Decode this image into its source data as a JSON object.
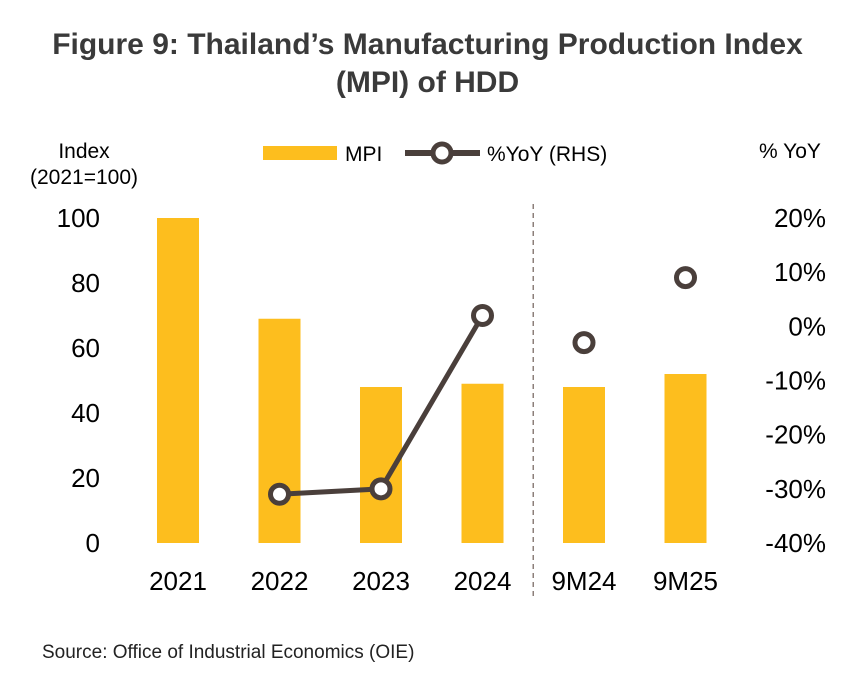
{
  "title_line1": "Figure 9: Thailand’s Manufacturing Production Index",
  "title_line2": "(MPI) of HDD",
  "source": "Source: Office of Industrial Economics (OIE)",
  "colors": {
    "bar": "#FDBE1E",
    "line": "#4A3F3B",
    "marker_fill": "#FFFFFF",
    "divider": "#8C7F7A"
  },
  "chart_data": {
    "type": "bar+line",
    "categories": [
      "2021",
      "2022",
      "2023",
      "2024",
      "9M24",
      "9M25"
    ],
    "left_axis_label_line1": "Index",
    "left_axis_label_line2": "(2021=100)",
    "right_axis_label": "% YoY",
    "left_ticks": [
      "0",
      "20",
      "40",
      "60",
      "80",
      "100"
    ],
    "right_ticks": [
      "-40%",
      "-30%",
      "-20%",
      "-10%",
      "0%",
      "10%",
      "20%"
    ],
    "ylim_left": [
      0,
      100
    ],
    "ylim_right": [
      -40,
      20
    ],
    "series": [
      {
        "name": "MPI",
        "kind": "bar",
        "axis": "left",
        "values": [
          100,
          69,
          48,
          49,
          48,
          52
        ]
      },
      {
        "name": "%YoY (RHS)",
        "kind": "line",
        "axis": "right",
        "values": [
          null,
          -31,
          -30,
          2,
          -3,
          9
        ],
        "connect": [
          [
            1,
            2
          ],
          [
            2,
            3
          ]
        ]
      }
    ],
    "legend": {
      "position": "top",
      "entries": [
        "MPI",
        "%YoY (RHS)"
      ]
    },
    "divider_after_category": "2024"
  }
}
